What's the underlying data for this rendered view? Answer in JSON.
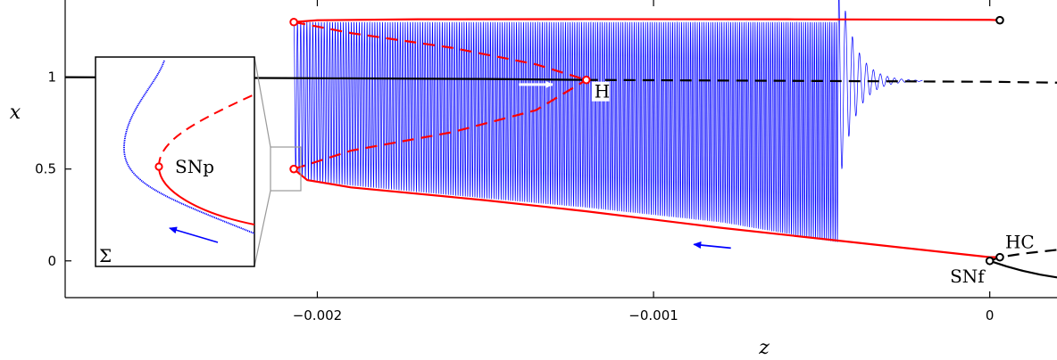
{
  "chart_data": {
    "type": "line",
    "xlabel": "z",
    "ylabel": "x",
    "xlim": [
      -0.00275,
      0.0002
    ],
    "ylim": [
      -0.2,
      1.42
    ],
    "x_ticks": [
      {
        "value": -0.002,
        "label": "−0.002"
      },
      {
        "value": -0.001,
        "label": "−0.001"
      },
      {
        "value": 0,
        "label": "0"
      }
    ],
    "y_ticks": [
      {
        "value": 0,
        "label": "0"
      },
      {
        "value": 0.5,
        "label": "0.5"
      },
      {
        "value": 1,
        "label": "1"
      }
    ],
    "grid": false,
    "colors": {
      "equilibrium": "#000000",
      "periodic": "#ff0000",
      "trajectory": "#0000ff",
      "inset_frame": "#999999"
    },
    "series": [
      {
        "kind": "equilibrium-stable",
        "color": "#000000",
        "dash": "solid",
        "points": [
          [
            -0.00275,
            1.0
          ],
          [
            -0.0021,
            0.995
          ],
          [
            -0.0015,
            0.99
          ],
          [
            -0.0012,
            0.985
          ]
        ]
      },
      {
        "kind": "equilibrium-unstable",
        "color": "#000000",
        "dash": "dashed",
        "points": [
          [
            -0.0012,
            0.985
          ],
          [
            -0.0006,
            0.98
          ],
          [
            0,
            0.975
          ],
          [
            0.0002,
            0.97
          ]
        ]
      },
      {
        "kind": "equilibrium-lower-stable",
        "color": "#000000",
        "dash": "solid",
        "points": [
          [
            0,
            0.0
          ],
          [
            5e-05,
            -0.03
          ],
          [
            0.0001,
            -0.055
          ],
          [
            0.00015,
            -0.075
          ],
          [
            0.0002,
            -0.09
          ]
        ]
      },
      {
        "kind": "equilibrium-lower-unstable",
        "color": "#000000",
        "dash": "dashed",
        "points": [
          [
            0,
            0.0
          ],
          [
            3e-05,
            0.02
          ],
          [
            0.0001,
            0.04
          ],
          [
            0.0002,
            0.06
          ]
        ]
      },
      {
        "kind": "periodic-max-stable",
        "color": "#ff0000",
        "dash": "solid",
        "points": [
          [
            -0.00207,
            1.3
          ],
          [
            -0.002,
            1.31
          ],
          [
            -0.0017,
            1.315
          ],
          [
            -0.0012,
            1.316
          ],
          [
            -0.0006,
            1.315
          ],
          [
            0,
            1.312
          ],
          [
            3e-05,
            1.31
          ]
        ]
      },
      {
        "kind": "periodic-min-stable",
        "color": "#ff0000",
        "dash": "solid",
        "points": [
          [
            -0.00207,
            0.5
          ],
          [
            -0.00203,
            0.44
          ],
          [
            -0.0019,
            0.4
          ],
          [
            -0.0015,
            0.33
          ],
          [
            -0.0012,
            0.27
          ],
          [
            -0.0008,
            0.18
          ],
          [
            -0.0004,
            0.1
          ],
          [
            -0.0001,
            0.04
          ],
          [
            0,
            0.02
          ],
          [
            3e-05,
            0.02
          ]
        ]
      },
      {
        "kind": "periodic-max-unstable",
        "color": "#ff0000",
        "dash": "dashed",
        "points": [
          [
            -0.00207,
            1.3
          ],
          [
            -0.0019,
            1.24
          ],
          [
            -0.0016,
            1.16
          ],
          [
            -0.00135,
            1.07
          ],
          [
            -0.0012,
            0.985
          ]
        ]
      },
      {
        "kind": "periodic-min-unstable",
        "color": "#ff0000",
        "dash": "dashed",
        "points": [
          [
            -0.00207,
            0.5
          ],
          [
            -0.0019,
            0.6
          ],
          [
            -0.0016,
            0.7
          ],
          [
            -0.00135,
            0.82
          ],
          [
            -0.0012,
            0.985
          ]
        ]
      },
      {
        "kind": "trajectory-upper-envelope",
        "color": "#0000ff",
        "dash": "solid",
        "points": [
          [
            -0.00207,
            1.3
          ],
          [
            -0.00045,
            1.3
          ]
        ]
      },
      {
        "kind": "trajectory-lower-envelope",
        "color": "#0000ff",
        "dash": "solid",
        "points": [
          [
            -0.00207,
            0.5
          ],
          [
            -0.00203,
            0.44
          ],
          [
            -0.0019,
            0.41
          ],
          [
            -0.0015,
            0.34
          ],
          [
            -0.0012,
            0.29
          ],
          [
            -0.0008,
            0.21
          ],
          [
            -0.00045,
            0.1
          ]
        ]
      }
    ],
    "points": [
      {
        "label": "H",
        "x": -0.0012,
        "y": 0.985,
        "color": "#ff0000"
      },
      {
        "label": "",
        "x": -0.00207,
        "y": 1.3,
        "color": "#ff0000"
      },
      {
        "label": "",
        "x": -0.00207,
        "y": 0.5,
        "color": "#ff0000"
      },
      {
        "label": "",
        "x": 3e-05,
        "y": 1.31,
        "color": "#000000"
      },
      {
        "label": "HC",
        "x": 3e-05,
        "y": 0.02,
        "color": "#000000"
      },
      {
        "label": "SNf",
        "x": 0,
        "y": 0.0,
        "color": "#000000"
      }
    ],
    "arrows": [
      {
        "color": "#ffffff",
        "from": [
          -0.0014,
          0.96
        ],
        "to": [
          -0.0013,
          0.96
        ]
      },
      {
        "color": "#0000ff",
        "from": [
          -0.00077,
          0.07
        ],
        "to": [
          -0.00088,
          0.09
        ]
      }
    ],
    "inset": {
      "label": "Σ",
      "point_label": "SNp",
      "zoom_box": {
        "x": [
          -0.0021,
          -0.00199
        ],
        "y": [
          0.4,
          0.62
        ]
      }
    }
  }
}
